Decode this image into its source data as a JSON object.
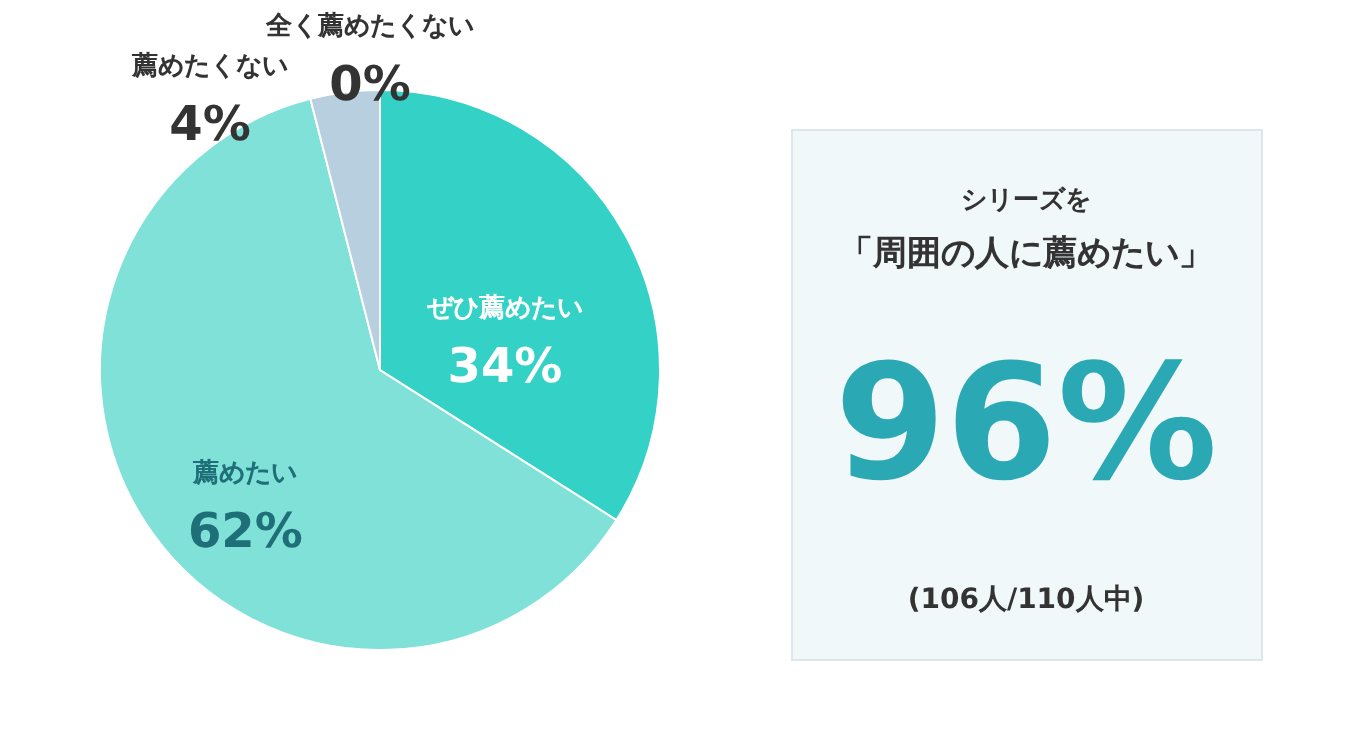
{
  "chart_data": [
    {
      "type": "pie",
      "categories": [
        "ぜひ薦めたい",
        "薦めたい",
        "薦めたくない",
        "全く薦めたくない"
      ],
      "values": [
        34,
        62,
        4,
        0
      ],
      "colors": [
        "#33d1c6",
        "#7fe1d7",
        "#b8cfe0",
        "#a9c2d8"
      ],
      "value_labels": [
        "34%",
        "62%",
        "4%",
        "0%"
      ],
      "legend": false
    },
    {
      "type": "other",
      "annotations": [
        "シリーズを",
        "「周囲の人に薦めたい」",
        "96%",
        "(106人/110人中)"
      ]
    }
  ]
}
